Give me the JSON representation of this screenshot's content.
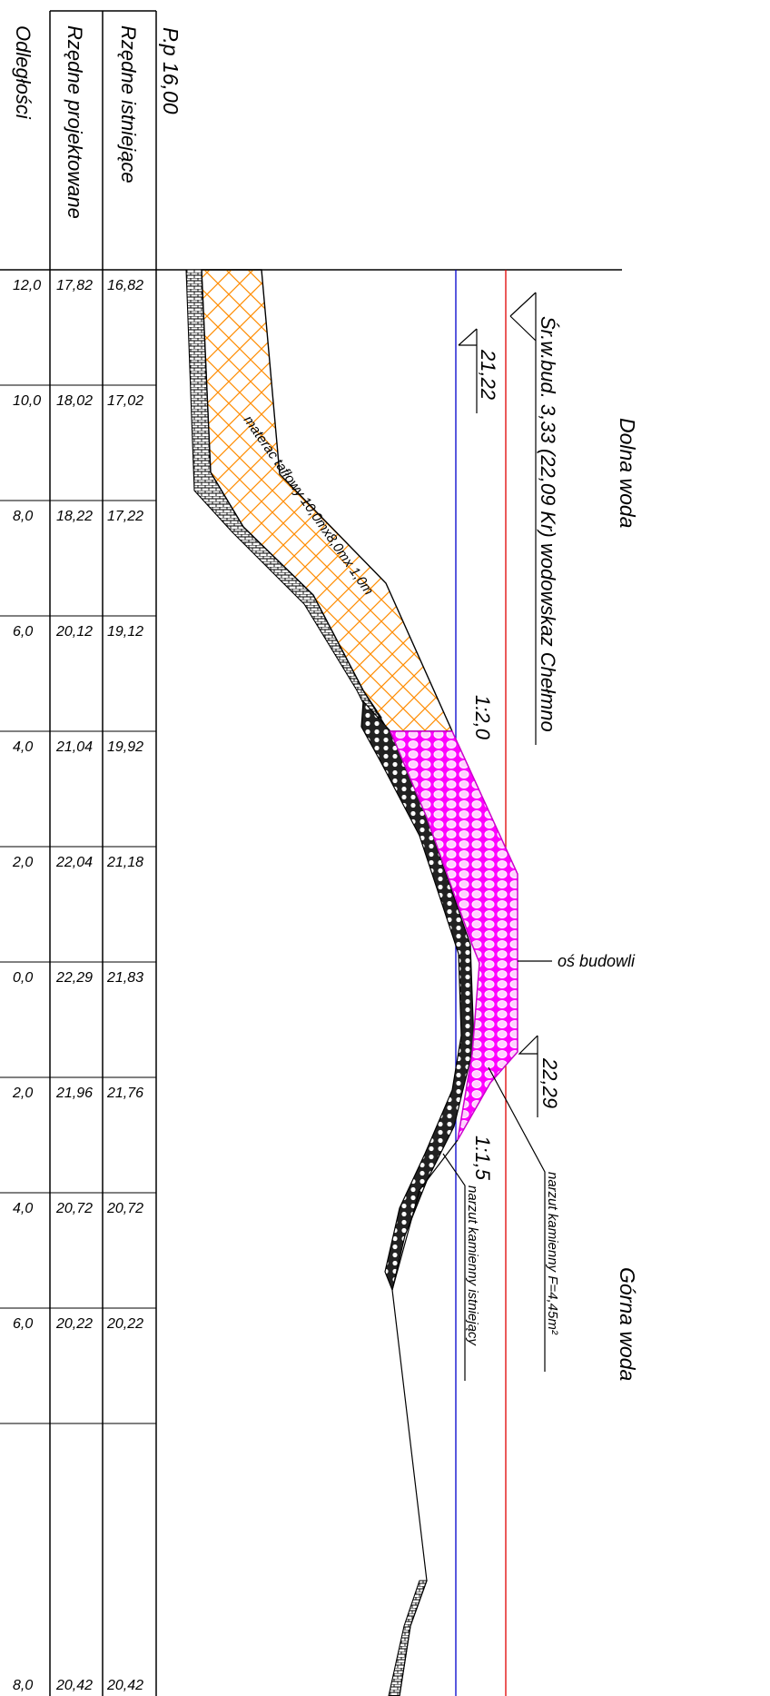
{
  "header": {
    "section_label": "P.p 16,00",
    "row_existing": "Rzędne istniejące",
    "row_design": "Rzędne projektowane",
    "row_distance": "Odległości"
  },
  "table": [
    {
      "dist": "12,0",
      "design": "17,82",
      "exist": "16,82"
    },
    {
      "dist": "10,0",
      "design": "18,02",
      "exist": "17,02"
    },
    {
      "dist": "8,0",
      "design": "18,22",
      "exist": "17,22"
    },
    {
      "dist": "6,0",
      "design": "20,12",
      "exist": "19,12"
    },
    {
      "dist": "4,0",
      "design": "21,04",
      "exist": "19,92"
    },
    {
      "dist": "2,0",
      "design": "22,04",
      "exist": "21,18"
    },
    {
      "dist": "0,0",
      "design": "22,29",
      "exist": "21,83"
    },
    {
      "dist": "2,0",
      "design": "21,96",
      "exist": "21,76"
    },
    {
      "dist": "4,0",
      "design": "20,72",
      "exist": "20,72"
    },
    {
      "dist": "6,0",
      "design": "20,22",
      "exist": "20,22"
    },
    {
      "dist": "8,0",
      "design": "20,42",
      "exist": "20,42"
    }
  ],
  "labels": {
    "lower_water": "Dolna woda",
    "upper_water": "Górna woda",
    "mean_water": "Śr.w.bud. 3,33 (22,09 Kr) wodowskaz Chełmno",
    "level_low": "21,22",
    "level_crest": "22,29",
    "slope_down": "1:2,0",
    "slope_up": "1:1,5",
    "axis": "oś budowli",
    "mattress": "materac tafłowy 10,0mx8,0mx 1,0m",
    "riprap_new": "narzut kamienny F=4,45m²",
    "riprap_existing": "narzut kamienny istniejący"
  },
  "colors": {
    "riprap_fill": "#ff00ff",
    "mattress_hatch": "#ff8c00",
    "mean_water_line": "#e00000",
    "low_water_line": "#0000cc"
  }
}
